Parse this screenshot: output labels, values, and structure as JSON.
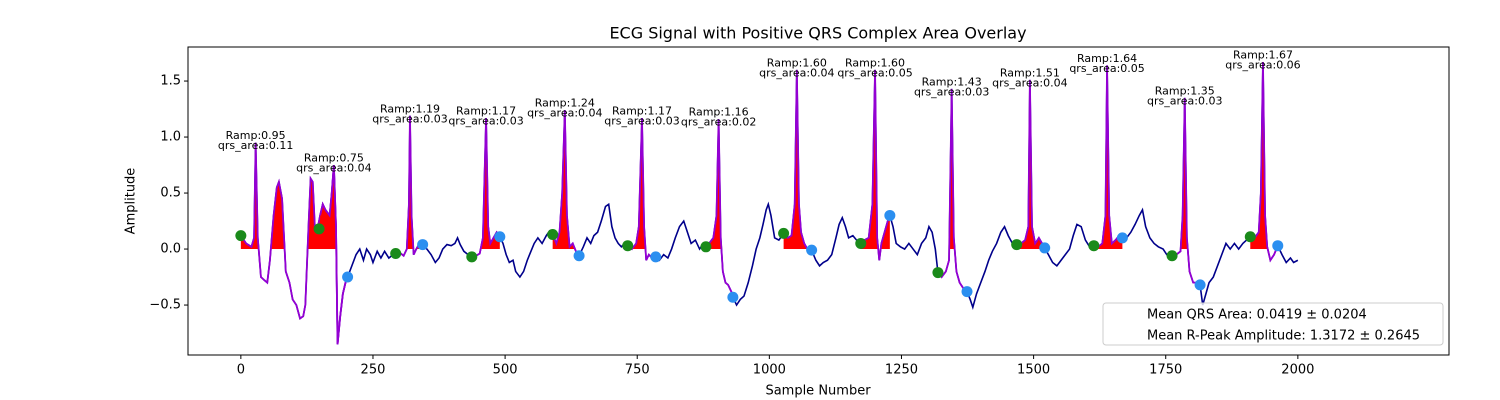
{
  "chart_data": {
    "type": "line",
    "title": "ECG Signal with Positive QRS Complex Area Overlay",
    "xlabel": "Sample Number",
    "ylabel": "Amplitude",
    "xlim": [
      -100,
      2286
    ],
    "ylim": [
      -0.946,
      1.804
    ],
    "xticks": [
      0,
      250,
      500,
      750,
      1000,
      1250,
      1500,
      1750,
      2000
    ],
    "yticks": [
      {
        "value": -0.5,
        "label": "−0.5"
      },
      {
        "value": 0,
        "label": "0.0"
      },
      0.5,
      {
        "value": 1,
        "label": "1.0"
      },
      1.5
    ],
    "series": [
      {
        "color": "#00008b",
        "x": [
          0,
          10,
          20,
          25,
          28,
          32,
          38,
          45,
          50,
          55,
          62,
          68,
          72,
          78,
          85,
          92,
          98,
          105,
          112,
          118,
          122,
          128,
          132,
          136,
          140,
          145,
          150,
          155,
          160,
          168,
          172,
          176,
          180,
          183,
          188,
          193,
          198,
          202,
          210,
          218,
          225,
          232,
          238,
          245,
          250,
          258,
          265,
          272,
          280,
          288,
          293,
          300,
          308,
          314,
          318,
          320,
          323,
          327,
          332,
          338,
          344,
          352,
          360,
          368,
          375,
          382,
          390,
          398,
          405,
          410,
          415,
          422,
          430,
          437,
          445,
          452,
          458,
          464,
          468,
          472,
          478,
          484,
          490,
          496,
          502,
          508,
          515,
          520,
          528,
          535,
          542,
          548,
          555,
          562,
          570,
          578,
          584,
          590,
          597,
          603,
          608,
          613,
          617,
          622,
          628,
          634,
          640,
          648,
          655,
          662,
          668,
          675,
          682,
          690,
          696,
          702,
          708,
          714,
          720,
          726,
          732,
          740,
          748,
          753,
          759,
          763,
          767,
          772,
          778,
          785,
          792,
          800,
          808,
          815,
          822,
          830,
          838,
          845,
          852,
          860,
          868,
          875,
          880,
          886,
          894,
          900,
          904,
          908,
          912,
          917,
          922,
          928,
          931,
          938,
          945,
          952,
          960,
          968,
          975,
          982,
          988,
          994,
          998,
          1003,
          1010,
          1018,
          1027,
          1035,
          1042,
          1048,
          1052,
          1056,
          1060,
          1066,
          1072,
          1080,
          1088,
          1095,
          1102,
          1110,
          1118,
          1126,
          1132,
          1138,
          1144,
          1150,
          1158,
          1165,
          1173,
          1180,
          1188,
          1195,
          1200,
          1204,
          1208,
          1212,
          1218,
          1224,
          1228,
          1234,
          1240,
          1248,
          1256,
          1264,
          1272,
          1280,
          1288,
          1296,
          1302,
          1308,
          1314,
          1319,
          1326,
          1334,
          1340,
          1345,
          1349,
          1354,
          1360,
          1367,
          1374,
          1380,
          1385,
          1392,
          1400,
          1408,
          1415,
          1422,
          1430,
          1438,
          1445,
          1452,
          1460,
          1468,
          1476,
          1484,
          1490,
          1493,
          1497,
          1503,
          1510,
          1516,
          1521,
          1528,
          1536,
          1544,
          1552,
          1560,
          1568,
          1575,
          1582,
          1590,
          1598,
          1606,
          1614,
          1622,
          1630,
          1636,
          1639,
          1643,
          1648,
          1655,
          1662,
          1668,
          1676,
          1684,
          1692,
          1700,
          1706,
          1712,
          1720,
          1728,
          1736,
          1745,
          1752,
          1758,
          1762,
          1770,
          1778,
          1782,
          1786,
          1790,
          1795,
          1802,
          1808,
          1815,
          1820,
          1826,
          1832,
          1840,
          1848,
          1856,
          1864,
          1872,
          1880,
          1888,
          1896,
          1903,
          1910,
          1918,
          1926,
          1930,
          1934,
          1938,
          1942,
          1948,
          1955,
          1962,
          1970,
          1978,
          1986,
          1992,
          2000
        ],
        "values": [
          0.12,
          0.05,
          0.02,
          0.1,
          0.95,
          0.1,
          -0.25,
          -0.28,
          -0.3,
          -0.1,
          0.3,
          0.55,
          0.6,
          0.45,
          -0.2,
          -0.3,
          -0.45,
          -0.5,
          -0.62,
          -0.6,
          -0.5,
          0.2,
          0.63,
          0.6,
          0.2,
          0.18,
          0.3,
          0.4,
          0.35,
          0.3,
          0.5,
          0.75,
          0.2,
          -0.85,
          -0.6,
          -0.4,
          -0.3,
          -0.25,
          -0.15,
          -0.05,
          0.0,
          -0.1,
          0.0,
          -0.05,
          -0.12,
          -0.02,
          -0.08,
          -0.02,
          -0.08,
          -0.05,
          -0.04,
          -0.03,
          -0.06,
          0.0,
          0.4,
          1.19,
          0.3,
          -0.05,
          0.0,
          0.05,
          0.04,
          0.0,
          -0.05,
          -0.12,
          -0.08,
          0.0,
          0.04,
          0.03,
          0.05,
          0.1,
          0.04,
          -0.02,
          -0.05,
          -0.07,
          -0.06,
          -0.04,
          0.1,
          1.17,
          0.2,
          0.05,
          0.1,
          0.15,
          0.11,
          0.05,
          -0.05,
          -0.12,
          -0.1,
          -0.2,
          -0.25,
          -0.2,
          -0.1,
          -0.03,
          0.05,
          0.1,
          0.05,
          0.12,
          0.16,
          0.13,
          0.05,
          0.15,
          0.5,
          1.24,
          0.3,
          0.02,
          0.05,
          -0.02,
          -0.06,
          0.02,
          0.1,
          0.05,
          0.12,
          0.15,
          0.25,
          0.38,
          0.4,
          0.2,
          0.1,
          0.05,
          0.02,
          0.05,
          0.03,
          0.0,
          0.05,
          0.2,
          1.17,
          0.2,
          -0.1,
          -0.05,
          -0.08,
          -0.07,
          -0.1,
          -0.05,
          -0.08,
          0.0,
          0.1,
          0.2,
          0.25,
          0.15,
          0.05,
          0.08,
          0.0,
          0.05,
          0.02,
          0.05,
          0.1,
          0.3,
          1.16,
          0.1,
          -0.2,
          -0.3,
          -0.32,
          -0.38,
          -0.43,
          -0.5,
          -0.45,
          -0.42,
          -0.3,
          -0.15,
          0.0,
          0.1,
          0.22,
          0.35,
          0.4,
          0.3,
          0.1,
          0.08,
          0.14,
          0.1,
          0.12,
          0.4,
          1.6,
          0.4,
          0.15,
          0.05,
          0.0,
          -0.01,
          -0.1,
          -0.15,
          -0.12,
          -0.1,
          -0.05,
          0.1,
          0.22,
          0.28,
          0.2,
          0.1,
          0.12,
          0.08,
          0.05,
          0.08,
          0.1,
          0.4,
          1.6,
          0.1,
          -0.1,
          0.05,
          0.15,
          0.25,
          0.3,
          0.2,
          0.05,
          0.02,
          0.0,
          0.05,
          0.0,
          -0.05,
          0.05,
          0.1,
          0.2,
          0.15,
          0.0,
          -0.21,
          -0.25,
          -0.2,
          -0.1,
          1.43,
          0.1,
          -0.2,
          -0.3,
          -0.35,
          -0.38,
          -0.45,
          -0.52,
          -0.4,
          -0.3,
          -0.2,
          -0.1,
          -0.02,
          0.05,
          0.15,
          0.2,
          0.12,
          0.05,
          0.04,
          0.05,
          0.08,
          0.2,
          1.51,
          0.2,
          0.05,
          0.1,
          0.05,
          0.01,
          -0.05,
          -0.12,
          -0.15,
          -0.1,
          -0.05,
          0.0,
          0.12,
          0.22,
          0.2,
          0.08,
          0.02,
          0.03,
          0.02,
          0.05,
          0.3,
          1.64,
          0.3,
          0.05,
          0.08,
          0.12,
          0.1,
          0.1,
          0.15,
          0.22,
          0.3,
          0.35,
          0.2,
          0.1,
          0.05,
          0.02,
          0.0,
          -0.05,
          -0.03,
          -0.06,
          -0.05,
          -0.02,
          0.3,
          1.35,
          0.1,
          -0.2,
          -0.3,
          -0.3,
          -0.32,
          -0.5,
          -0.4,
          -0.3,
          -0.25,
          -0.15,
          -0.05,
          0.05,
          0.0,
          0.05,
          0.0,
          0.05,
          0.08,
          0.11,
          0.1,
          0.15,
          0.5,
          1.67,
          0.3,
          0.02,
          -0.1,
          -0.05,
          0.03,
          -0.05,
          -0.12,
          -0.08,
          -0.12,
          -0.1
        ]
      }
    ],
    "qrs_color": "#9400d3",
    "fill_color": "#ff0000",
    "scatter": [
      {
        "color": "#1a8a1a",
        "x": [
          0,
          148,
          293,
          437,
          590,
          732,
          880,
          1027,
          1173,
          1319,
          1468,
          1614,
          1762,
          1910
        ],
        "values": [
          0.12,
          0.18,
          -0.04,
          -0.07,
          0.13,
          0.03,
          0.02,
          0.14,
          0.05,
          -0.21,
          0.04,
          0.03,
          -0.06,
          0.11
        ]
      },
      {
        "color": "#2b8ff0",
        "x": [
          202,
          344,
          490,
          640,
          785,
          931,
          1080,
          1228,
          1374,
          1521,
          1668,
          1815,
          1962
        ],
        "values": [
          -0.25,
          0.04,
          0.11,
          -0.06,
          -0.07,
          -0.43,
          -0.01,
          0.3,
          -0.38,
          0.01,
          0.1,
          -0.32,
          0.03
        ]
      }
    ],
    "annotations": [
      {
        "x": 28,
        "y": 0.95,
        "lines": [
          "Ramp:0.95",
          "qrs_area:0.11"
        ]
      },
      {
        "x": 176,
        "y": 0.75,
        "lines": [
          "Ramp:0.75",
          "qrs_area:0.04"
        ]
      },
      {
        "x": 320,
        "y": 1.19,
        "lines": [
          "Ramp:1.19",
          "qrs_area:0.03"
        ]
      },
      {
        "x": 464,
        "y": 1.17,
        "lines": [
          "Ramp:1.17",
          "qrs_area:0.03"
        ]
      },
      {
        "x": 613,
        "y": 1.24,
        "lines": [
          "Ramp:1.24",
          "qrs_area:0.04"
        ]
      },
      {
        "x": 759,
        "y": 1.17,
        "lines": [
          "Ramp:1.17",
          "qrs_area:0.03"
        ]
      },
      {
        "x": 904,
        "y": 1.16,
        "lines": [
          "Ramp:1.16",
          "qrs_area:0.02"
        ]
      },
      {
        "x": 1052,
        "y": 1.6,
        "lines": [
          "Ramp:1.60",
          "qrs_area:0.04"
        ]
      },
      {
        "x": 1200,
        "y": 1.6,
        "lines": [
          "Ramp:1.60",
          "qrs_area:0.05"
        ]
      },
      {
        "x": 1345,
        "y": 1.43,
        "lines": [
          "Ramp:1.43",
          "qrs_area:0.03"
        ]
      },
      {
        "x": 1493,
        "y": 1.51,
        "lines": [
          "Ramp:1.51",
          "qrs_area:0.04"
        ]
      },
      {
        "x": 1639,
        "y": 1.64,
        "lines": [
          "Ramp:1.64",
          "qrs_area:0.05"
        ]
      },
      {
        "x": 1786,
        "y": 1.35,
        "lines": [
          "Ramp:1.35",
          "qrs_area:0.03"
        ]
      },
      {
        "x": 1934,
        "y": 1.67,
        "lines": [
          "Ramp:1.67",
          "qrs_area:0.06"
        ]
      }
    ],
    "legend": {
      "loc": "lower right",
      "entries": [
        "Mean QRS Area: 0.0419 ± 0.0204",
        "Mean R-Peak Amplitude: 1.3172 ± 0.2645"
      ]
    }
  }
}
